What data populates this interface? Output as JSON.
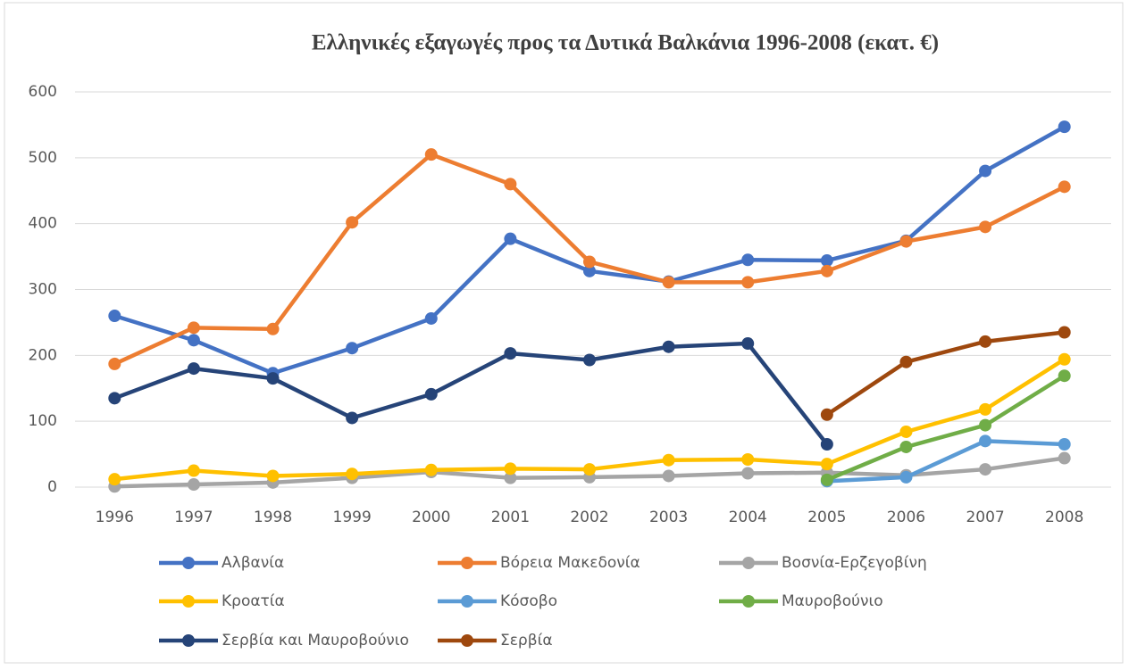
{
  "chart_data": {
    "type": "line",
    "title": "Ελληνικές εξαγωγές προς τα Δυτικά Βαλκάνια 1996-2008 (εκατ. €)",
    "categories": [
      "1996",
      "1997",
      "1998",
      "1999",
      "2000",
      "2001",
      "2002",
      "2003",
      "2004",
      "2005",
      "2006",
      "2007",
      "2008"
    ],
    "series": [
      {
        "name": "Αλβανία",
        "color": "#4472c4",
        "values": [
          260,
          223,
          173,
          211,
          256,
          377,
          328,
          312,
          345,
          344,
          374,
          480,
          547
        ]
      },
      {
        "name": "Βόρεια Μακεδονία",
        "color": "#ed7d31",
        "values": [
          187,
          242,
          240,
          402,
          505,
          460,
          342,
          311,
          311,
          328,
          373,
          395,
          456
        ]
      },
      {
        "name": "Βοσνία-Ερζεγοβίνη",
        "color": "#a5a5a5",
        "values": [
          1,
          4,
          7,
          14,
          23,
          14,
          15,
          17,
          21,
          22,
          18,
          27,
          44
        ]
      },
      {
        "name": "Κροατία",
        "color": "#ffc000",
        "values": [
          12,
          25,
          17,
          20,
          26,
          28,
          27,
          41,
          42,
          35,
          84,
          118,
          194
        ]
      },
      {
        "name": "Κόσοβο",
        "color": "#5b9bd5",
        "values": [
          null,
          null,
          null,
          null,
          null,
          null,
          null,
          null,
          null,
          9,
          15,
          70,
          65
        ]
      },
      {
        "name": "Μαυροβούνιο",
        "color": "#70ad47",
        "values": [
          null,
          null,
          null,
          null,
          null,
          null,
          null,
          null,
          null,
          11,
          61,
          94,
          169
        ]
      },
      {
        "name": "Σερβία και Μαυροβούνιο",
        "color": "#264478",
        "values": [
          135,
          180,
          165,
          105,
          141,
          203,
          193,
          213,
          218,
          65,
          null,
          null,
          null
        ]
      },
      {
        "name": "Σερβία",
        "color": "#9e480e",
        "values": [
          null,
          null,
          null,
          null,
          null,
          null,
          null,
          null,
          null,
          110,
          190,
          221,
          235
        ]
      }
    ],
    "ylim": [
      0,
      600
    ],
    "yticks": [
      0,
      100,
      200,
      300,
      400,
      500,
      600
    ],
    "grid": true,
    "legend": "bottom"
  }
}
